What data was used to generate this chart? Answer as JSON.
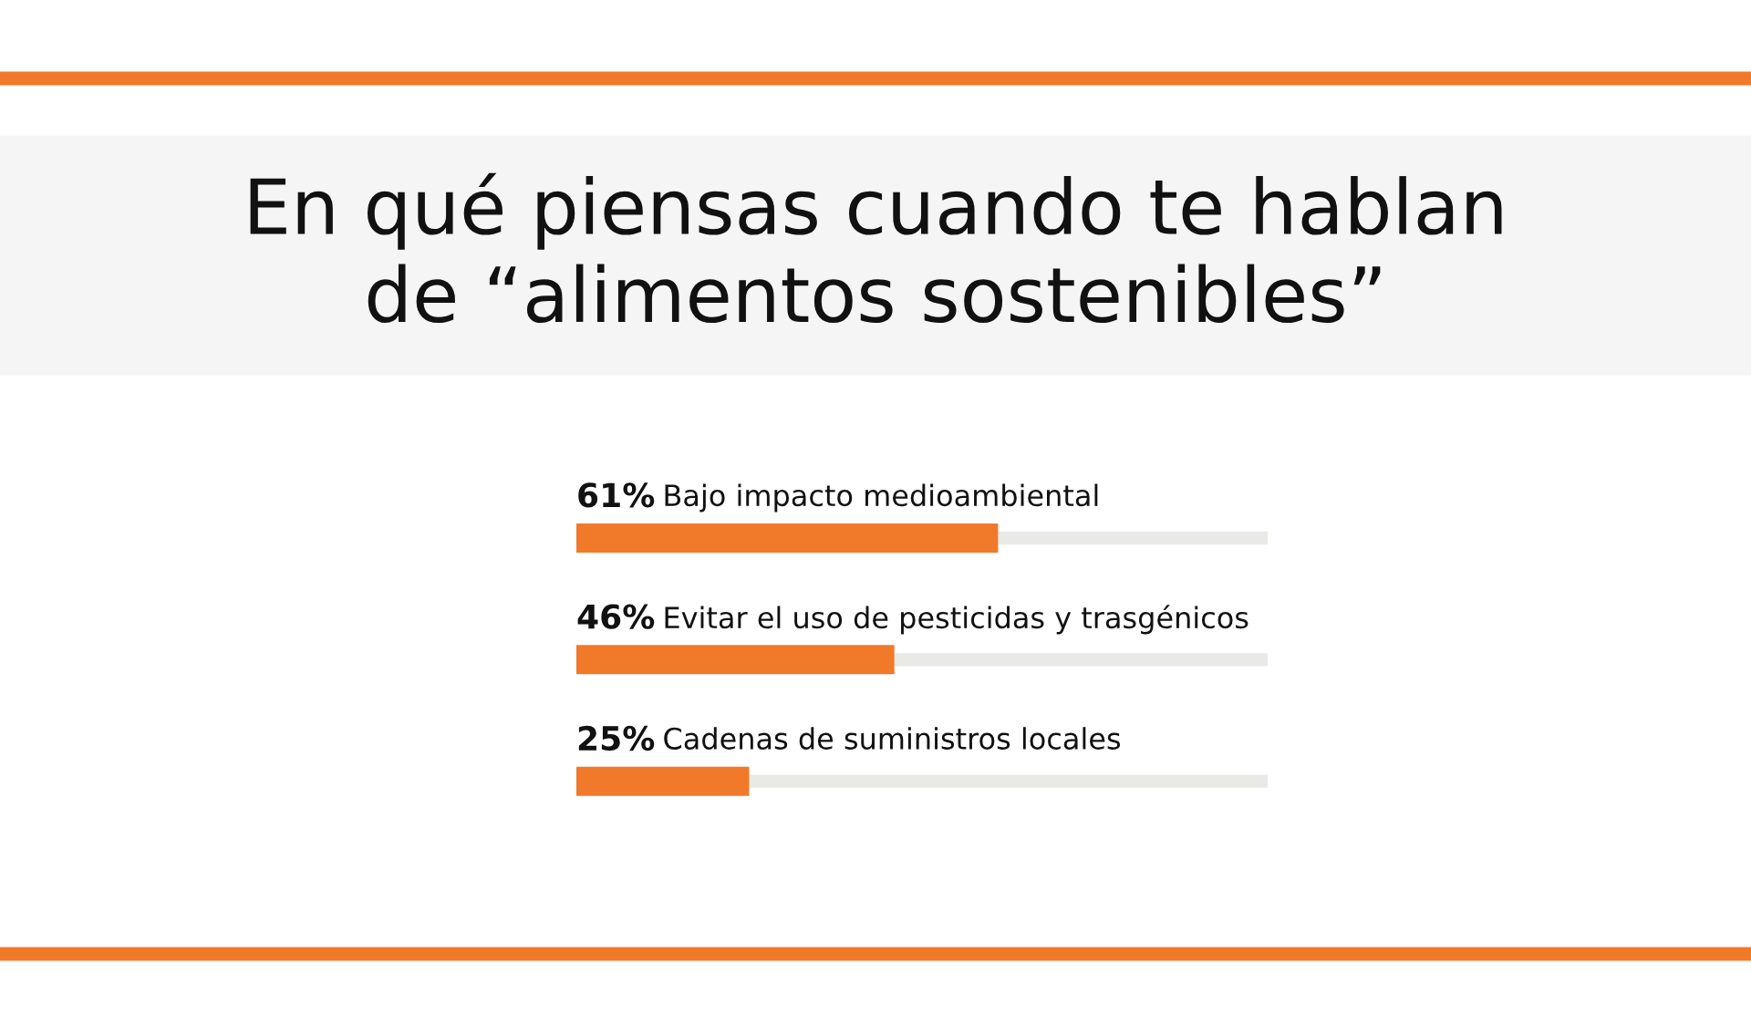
{
  "chart_data": {
    "type": "bar",
    "orientation": "horizontal",
    "stacked": true,
    "title": "En qué piensas cuando te hablan\nde “alimentos sostenibles”",
    "categories": [
      "Bajo impacto medioambiental",
      "Evitar el uso de pesticidas y trasgénicos",
      "Cadenas de suministros locales"
    ],
    "series": [
      {
        "color": "#f07a2a",
        "values": [
          61,
          46,
          25
        ],
        "value_labels": [
          "61%",
          "46%",
          "25%"
        ]
      },
      {
        "color": "#e9e9e6",
        "values": [
          39,
          54,
          75
        ]
      }
    ],
    "xlim": [
      0,
      100
    ]
  }
}
